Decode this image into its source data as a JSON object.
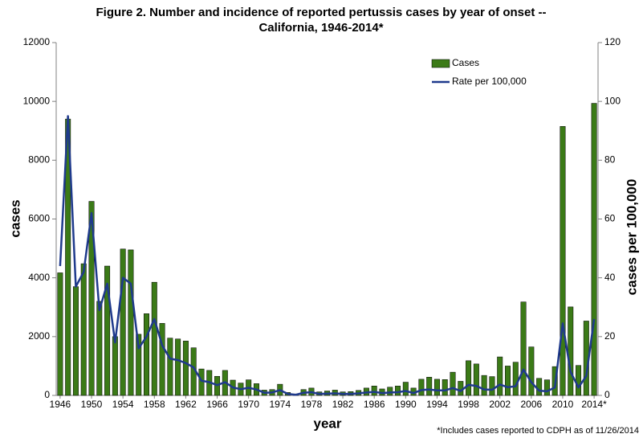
{
  "chart_data": {
    "type": "bar_line",
    "title": [
      "Figure 2. Number and incidence of reported pertussis cases by year of onset --",
      "California, 1946-2014*"
    ],
    "xlabel": "year",
    "ylabel": "cases",
    "y2label": "cases per 100,000",
    "footnote": "*Includes cases reported to CDPH as of 11/26/2014",
    "categories": [
      "1946",
      null,
      null,
      null,
      "1950",
      null,
      null,
      null,
      "1954",
      null,
      null,
      null,
      "1958",
      null,
      null,
      null,
      "1962",
      null,
      null,
      null,
      "1966",
      null,
      null,
      null,
      "1970",
      null,
      null,
      null,
      "1974",
      null,
      null,
      null,
      "1978",
      null,
      null,
      null,
      "1982",
      null,
      null,
      null,
      "1986",
      null,
      null,
      null,
      "1990",
      null,
      null,
      null,
      "1994",
      null,
      null,
      null,
      "1998",
      null,
      null,
      null,
      "2002",
      null,
      null,
      null,
      "2006",
      null,
      null,
      null,
      "2010",
      null,
      null,
      null,
      "2014*"
    ],
    "series": [
      {
        "name": "Cases",
        "type": "bar",
        "color": "#3b7a17",
        "values": [
          4170,
          9400,
          3700,
          4480,
          6600,
          3200,
          4400,
          2000,
          4980,
          4950,
          2080,
          2780,
          3850,
          2450,
          1950,
          1920,
          1850,
          1620,
          900,
          850,
          650,
          850,
          520,
          420,
          530,
          400,
          180,
          200,
          380,
          100,
          50,
          200,
          250,
          120,
          150,
          180,
          120,
          130,
          170,
          250,
          320,
          220,
          280,
          320,
          450,
          250,
          550,
          620,
          550,
          540,
          790,
          480,
          1180,
          1070,
          680,
          640,
          1310,
          1000,
          1130,
          3180,
          1650,
          580,
          530,
          980,
          9150,
          3010,
          1020,
          2530,
          9935
        ]
      },
      {
        "name": "Rate per 100,000",
        "type": "line",
        "axis": "y2",
        "color": "#1f3a8c",
        "values": [
          44,
          95,
          37,
          42,
          62,
          29,
          38,
          18,
          40,
          38,
          16,
          20,
          26,
          17,
          12.5,
          12,
          11,
          9.5,
          5,
          4.5,
          3.5,
          4.5,
          2.7,
          2.1,
          2.6,
          2,
          0.9,
          1,
          1.8,
          0.5,
          0.2,
          0.9,
          1.1,
          0.5,
          0.6,
          0.7,
          0.5,
          0.5,
          0.7,
          1,
          1.2,
          0.8,
          1,
          1.1,
          1.5,
          0.8,
          1.8,
          2,
          1.7,
          1.7,
          2.5,
          1.5,
          3.6,
          3.2,
          2,
          1.9,
          3.7,
          2.8,
          3.1,
          8.8,
          4.5,
          1.6,
          1.4,
          2.7,
          24.5,
          8,
          2.7,
          6.6,
          26
        ]
      }
    ],
    "ylim": [
      0,
      12000
    ],
    "yticks": [
      0,
      2000,
      4000,
      6000,
      8000,
      10000,
      12000
    ],
    "y2lim": [
      0,
      120
    ],
    "y2ticks": [
      0,
      20,
      40,
      60,
      80,
      100,
      120
    ],
    "grid": false,
    "legend": "top"
  }
}
